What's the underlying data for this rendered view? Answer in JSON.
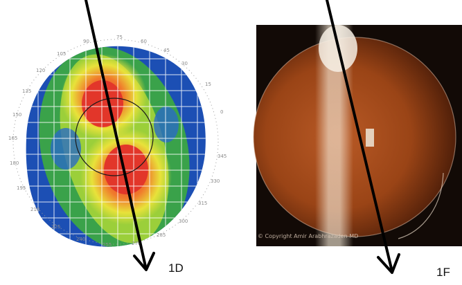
{
  "figure_labels": {
    "left": "1D",
    "right": "1F"
  },
  "topography": {
    "degree_marks": [
      "0",
      "15",
      "30",
      "45",
      "60",
      "75",
      "90",
      "105",
      "120",
      "135",
      "150",
      "165",
      "180",
      "195",
      "210",
      "225",
      "240",
      "255",
      "270",
      "285",
      "300",
      "315",
      "330",
      "345"
    ],
    "colors": {
      "blue": "#1c4fb4",
      "green": "#3aa24a",
      "yellow": "#e8e23a",
      "orange": "#f2a22c",
      "red": "#e2362a"
    }
  },
  "slit_lamp": {
    "watermark": "© Copyright Amir Arabhrazaden MD",
    "colors": {
      "background": "#120a06",
      "lens": "#c8642a",
      "beam": "#f4e8d6"
    }
  }
}
